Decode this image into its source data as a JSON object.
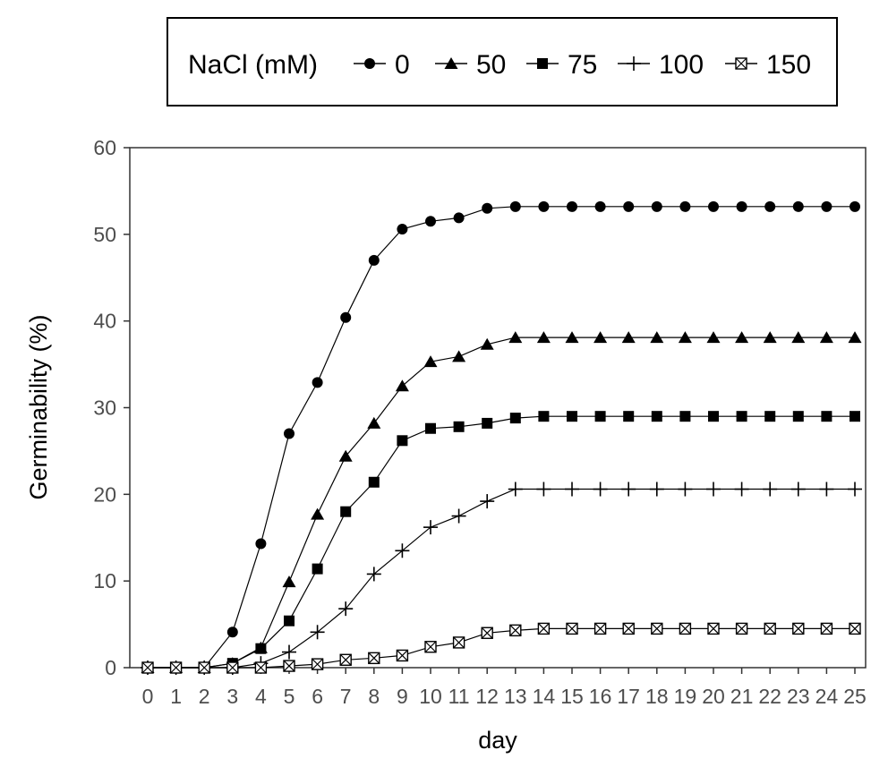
{
  "chart_data": {
    "type": "line",
    "title": "",
    "xlabel": "day",
    "ylabel": "Germinability (%)",
    "xlim": [
      0,
      25
    ],
    "ylim": [
      0,
      60
    ],
    "x_ticks": [
      "0",
      "1",
      "2",
      "3",
      "4",
      "5",
      "6",
      "7",
      "8",
      "9",
      "10",
      "11",
      "12",
      "13",
      "14",
      "15",
      "16",
      "17",
      "18",
      "19",
      "20",
      "21",
      "22",
      "23",
      "24",
      "25"
    ],
    "y_ticks": [
      0,
      10,
      20,
      30,
      40,
      50,
      60
    ],
    "grid": false,
    "legend": {
      "position": "top",
      "title": "NaCl (mM)",
      "entries": [
        "0",
        "50",
        "75",
        "100",
        "150"
      ]
    },
    "x": [
      0,
      1,
      2,
      3,
      4,
      5,
      6,
      7,
      8,
      9,
      10,
      11,
      12,
      13,
      14,
      15,
      16,
      17,
      18,
      19,
      20,
      21,
      22,
      23,
      24,
      25
    ],
    "series": [
      {
        "name": "0",
        "marker": "circle",
        "values": [
          0,
          0,
          0,
          4.1,
          14.3,
          27,
          32.9,
          40.4,
          47,
          50.6,
          51.5,
          51.9,
          53,
          53.2,
          53.2,
          53.2,
          53.2,
          53.2,
          53.2,
          53.2,
          53.2,
          53.2,
          53.2,
          53.2,
          53.2,
          53.2
        ]
      },
      {
        "name": "50",
        "marker": "triangle",
        "values": [
          0,
          0,
          0,
          0.5,
          2.3,
          9.9,
          17.7,
          24.4,
          28.2,
          32.5,
          35.3,
          35.9,
          37.3,
          38.1,
          38.1,
          38.1,
          38.1,
          38.1,
          38.1,
          38.1,
          38.1,
          38.1,
          38.1,
          38.1,
          38.1,
          38.1
        ]
      },
      {
        "name": "75",
        "marker": "square",
        "values": [
          0,
          0,
          0,
          0.5,
          2.2,
          5.4,
          11.4,
          18,
          21.4,
          26.2,
          27.6,
          27.8,
          28.2,
          28.8,
          29,
          29,
          29,
          29,
          29,
          29,
          29,
          29,
          29,
          29,
          29,
          29
        ]
      },
      {
        "name": "100",
        "marker": "plus",
        "values": [
          0,
          0,
          0,
          0,
          0.5,
          1.8,
          4.1,
          6.8,
          10.8,
          13.5,
          16.2,
          17.5,
          19.2,
          20.6,
          20.6,
          20.6,
          20.6,
          20.6,
          20.6,
          20.6,
          20.6,
          20.6,
          20.6,
          20.6,
          20.6,
          20.6
        ]
      },
      {
        "name": "150",
        "marker": "boxed-x",
        "values": [
          0,
          0,
          0,
          0,
          0,
          0.2,
          0.4,
          0.9,
          1.1,
          1.4,
          2.4,
          2.9,
          4,
          4.3,
          4.5,
          4.5,
          4.5,
          4.5,
          4.5,
          4.5,
          4.5,
          4.5,
          4.5,
          4.5,
          4.5,
          4.5
        ]
      }
    ]
  }
}
